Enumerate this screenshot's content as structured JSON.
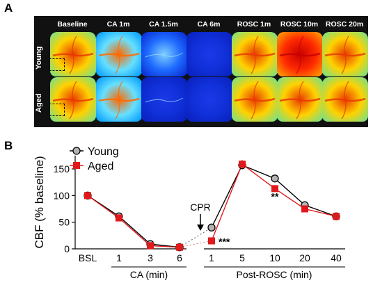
{
  "figure": {
    "panel_a_letter": "A",
    "panel_b_letter": "B",
    "columns": [
      "Baseline",
      "CA 1m",
      "CA 1.5m",
      "CA 6m",
      "ROSC 1m",
      "ROSC 10m",
      "ROSC 20m"
    ],
    "rows": [
      "Young",
      "Aged"
    ],
    "tile_levels": [
      [
        0.75,
        0.45,
        0.12,
        0.02,
        0.78,
        0.95,
        0.72
      ],
      [
        0.72,
        0.4,
        0.08,
        0.01,
        0.74,
        0.85,
        0.7
      ]
    ],
    "colors": {
      "young_marker": "#b3b3b3",
      "young_line": "#000000",
      "aged": "#e0191c"
    }
  },
  "chart_data": {
    "type": "line",
    "ylabel": "CBF (% baseline)",
    "ylim": [
      0,
      175
    ],
    "yticks": [
      0,
      50,
      100,
      150
    ],
    "categories": [
      "BSL",
      "1",
      "3",
      "6",
      "1",
      "5",
      "10",
      "20",
      "40"
    ],
    "group_labels": [
      "CA (min)",
      "Post-ROSC (min)"
    ],
    "annotation_cpr": "CPR",
    "series": [
      {
        "name": "Young",
        "values": [
          100,
          61,
          9,
          3,
          40,
          157,
          132,
          82,
          61
        ],
        "errors": [
          3,
          4,
          3,
          2,
          6,
          8,
          4,
          4,
          3
        ]
      },
      {
        "name": "Aged",
        "values": [
          100,
          58,
          6,
          3,
          15,
          159,
          113,
          75,
          61
        ],
        "errors": [
          3,
          4,
          3,
          2,
          4,
          8,
          5,
          4,
          3
        ]
      }
    ],
    "significance": [
      {
        "category_index": 4,
        "label": "***"
      },
      {
        "category_index": 6,
        "label": "**"
      }
    ],
    "legend_position": "top-left"
  }
}
